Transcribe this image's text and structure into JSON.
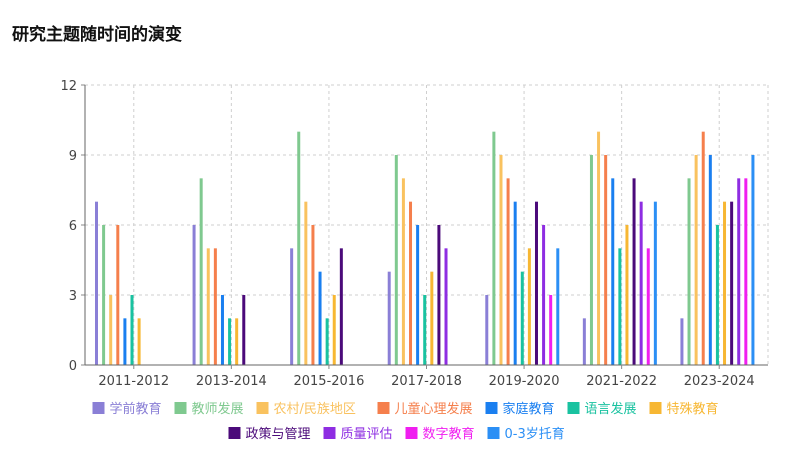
{
  "title": "研究主题随时间的演变",
  "chart_data": {
    "type": "bar",
    "title": "研究主题随时间的演变",
    "xlabel": "",
    "ylabel": "",
    "ylim": [
      0,
      12
    ],
    "yticks": [
      0,
      3,
      6,
      9,
      12
    ],
    "grid": true,
    "legend_position": "bottom",
    "categories": [
      "2011-2012",
      "2013-2014",
      "2015-2016",
      "2017-2018",
      "2019-2020",
      "2021-2022",
      "2023-2024"
    ],
    "series": [
      {
        "name": "学前教育",
        "color": "#8a7fd6",
        "values": [
          7,
          6,
          5,
          4,
          3,
          2,
          2
        ]
      },
      {
        "name": "教师发展",
        "color": "#7fc98f",
        "values": [
          6,
          8,
          10,
          9,
          10,
          9,
          8
        ]
      },
      {
        "name": "农村/民族地区",
        "color": "#f9c25f",
        "values": [
          3,
          5,
          7,
          8,
          9,
          10,
          9
        ]
      },
      {
        "name": "儿童心理发展",
        "color": "#f57f4c",
        "values": [
          6,
          5,
          6,
          7,
          8,
          9,
          10
        ]
      },
      {
        "name": "家庭教育",
        "color": "#1a7ff0",
        "values": [
          2,
          3,
          4,
          6,
          7,
          8,
          9
        ]
      },
      {
        "name": "语言发展",
        "color": "#19c2a0",
        "values": [
          3,
          2,
          2,
          3,
          4,
          5,
          6
        ]
      },
      {
        "name": "特殊教育",
        "color": "#f7b733",
        "values": [
          2,
          2,
          3,
          4,
          5,
          6,
          7
        ]
      },
      {
        "name": "政策与管理",
        "color": "#4b0a7a",
        "values": [
          0,
          3,
          5,
          6,
          7,
          8,
          7
        ]
      },
      {
        "name": "质量评估",
        "color": "#8e2de2",
        "values": [
          0,
          0,
          0,
          5,
          6,
          7,
          8
        ]
      },
      {
        "name": "数字教育",
        "color": "#f01ef0",
        "values": [
          0,
          0,
          0,
          0,
          3,
          5,
          8
        ]
      },
      {
        "name": "0-3岁托育",
        "color": "#2b8ff5",
        "values": [
          0,
          0,
          0,
          0,
          5,
          7,
          9
        ]
      }
    ]
  }
}
